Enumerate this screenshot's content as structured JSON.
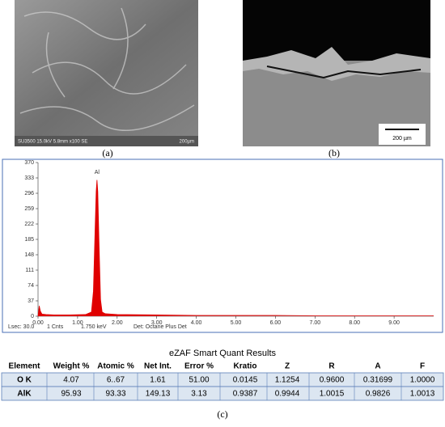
{
  "panel_a": {
    "info": "SU3500 15.0kV 5.8mm x100 SE",
    "scale": "200µm",
    "caption": "(a)"
  },
  "panel_b": {
    "scale": "200 µm",
    "caption": "(b)"
  },
  "chart_data": {
    "type": "area",
    "color": "#e00000",
    "annotation": "Al",
    "x": [
      0.0,
      0.03,
      0.06,
      0.1,
      0.2,
      0.4,
      0.8,
      1.2,
      1.35,
      1.4,
      1.44,
      1.47,
      1.49,
      1.51,
      1.54,
      1.58,
      1.62,
      1.7,
      2.0,
      3.0,
      4.0,
      5.0,
      6.0,
      7.0,
      8.0,
      9.0,
      10.0
    ],
    "values": [
      0,
      25,
      12,
      5,
      4,
      3,
      3,
      4,
      10,
      60,
      200,
      300,
      328,
      300,
      180,
      40,
      10,
      6,
      4,
      3,
      2,
      2,
      2,
      1,
      1,
      1,
      1
    ],
    "xlim": [
      0,
      10
    ],
    "ylim": [
      0,
      370
    ],
    "xticks": [
      {
        "value": 0,
        "label": "0.00"
      },
      {
        "value": 1,
        "label": "1.00"
      },
      {
        "value": 2,
        "label": "2.00"
      },
      {
        "value": 3,
        "label": "3.00"
      },
      {
        "value": 4,
        "label": "4.00"
      },
      {
        "value": 5,
        "label": "5.00"
      },
      {
        "value": 6,
        "label": "6.00"
      },
      {
        "value": 7,
        "label": "7.00"
      },
      {
        "value": 8,
        "label": "8.00"
      },
      {
        "value": 9,
        "label": "9.00"
      }
    ],
    "yticks": [
      0,
      37,
      74,
      111,
      148,
      185,
      222,
      259,
      296,
      333,
      370
    ],
    "footer": [
      "Lsec: 30.0",
      "1 Cnts",
      "1.750 keV",
      "Det: Octane Plus Det"
    ]
  },
  "table": {
    "title": "eZAF Smart Quant Results",
    "header": [
      "Element",
      "Weight %",
      "Atomic %",
      "Net Int.",
      "Error %",
      "Kratio",
      "Z",
      "R",
      "A",
      "F"
    ],
    "rows": [
      [
        "O K",
        "4.07",
        "6..67",
        "1.61",
        "51.00",
        "0.0145",
        "1.1254",
        "0.9600",
        "0.31699",
        "1.0000"
      ],
      [
        "AlK",
        "95.93",
        "93.33",
        "149.13",
        "3.13",
        "0.9387",
        "0.9944",
        "1.0015",
        "0.9826",
        "1.0013"
      ]
    ]
  },
  "panel_c": {
    "caption": "(c)"
  }
}
